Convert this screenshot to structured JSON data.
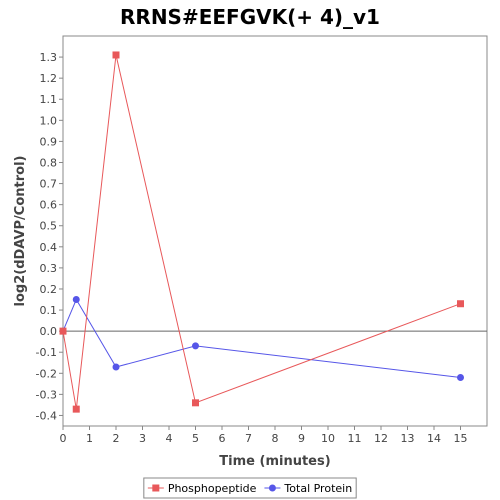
{
  "chart_data": {
    "type": "line",
    "title": "RRNS#EEFGVK(+ 4)_v1",
    "xlabel": "Time (minutes)",
    "ylabel": "log2(dDAVP/Control)",
    "xlim": [
      0,
      16
    ],
    "ylim": [
      -0.45,
      1.4
    ],
    "xticks": [
      0,
      1,
      2,
      3,
      4,
      5,
      6,
      7,
      8,
      9,
      10,
      11,
      12,
      13,
      14,
      15
    ],
    "yticks": [
      -0.4,
      -0.3,
      -0.2,
      -0.1,
      0.0,
      0.1,
      0.2,
      0.3,
      0.4,
      0.5,
      0.6,
      0.7,
      0.8,
      0.9,
      1.0,
      1.1,
      1.2,
      1.3
    ],
    "xtick_labels": [
      "0",
      "1",
      "2",
      "3",
      "4",
      "5",
      "6",
      "7",
      "8",
      "9",
      "10",
      "11",
      "12",
      "13",
      "14",
      "15"
    ],
    "ytick_labels": [
      "-0.4",
      "-0.3",
      "-0.2",
      "-0.1",
      "0.0",
      "0.1",
      "0.2",
      "0.3",
      "0.4",
      "0.5",
      "0.6",
      "0.7",
      "0.8",
      "0.9",
      "1.0",
      "1.1",
      "1.2",
      "1.3"
    ],
    "grid": false,
    "legend_position": "bottom",
    "series": [
      {
        "name": "Phosphopeptide",
        "color": "#e8585a",
        "marker": "square",
        "x": [
          0,
          0.5,
          2,
          5,
          15
        ],
        "y": [
          0.0,
          -0.37,
          1.31,
          -0.34,
          0.13
        ]
      },
      {
        "name": "Total Protein",
        "color": "#5656e8",
        "marker": "circle",
        "x": [
          0,
          0.5,
          2,
          5,
          15
        ],
        "y": [
          0.0,
          0.15,
          -0.17,
          -0.07,
          -0.22
        ]
      }
    ]
  }
}
